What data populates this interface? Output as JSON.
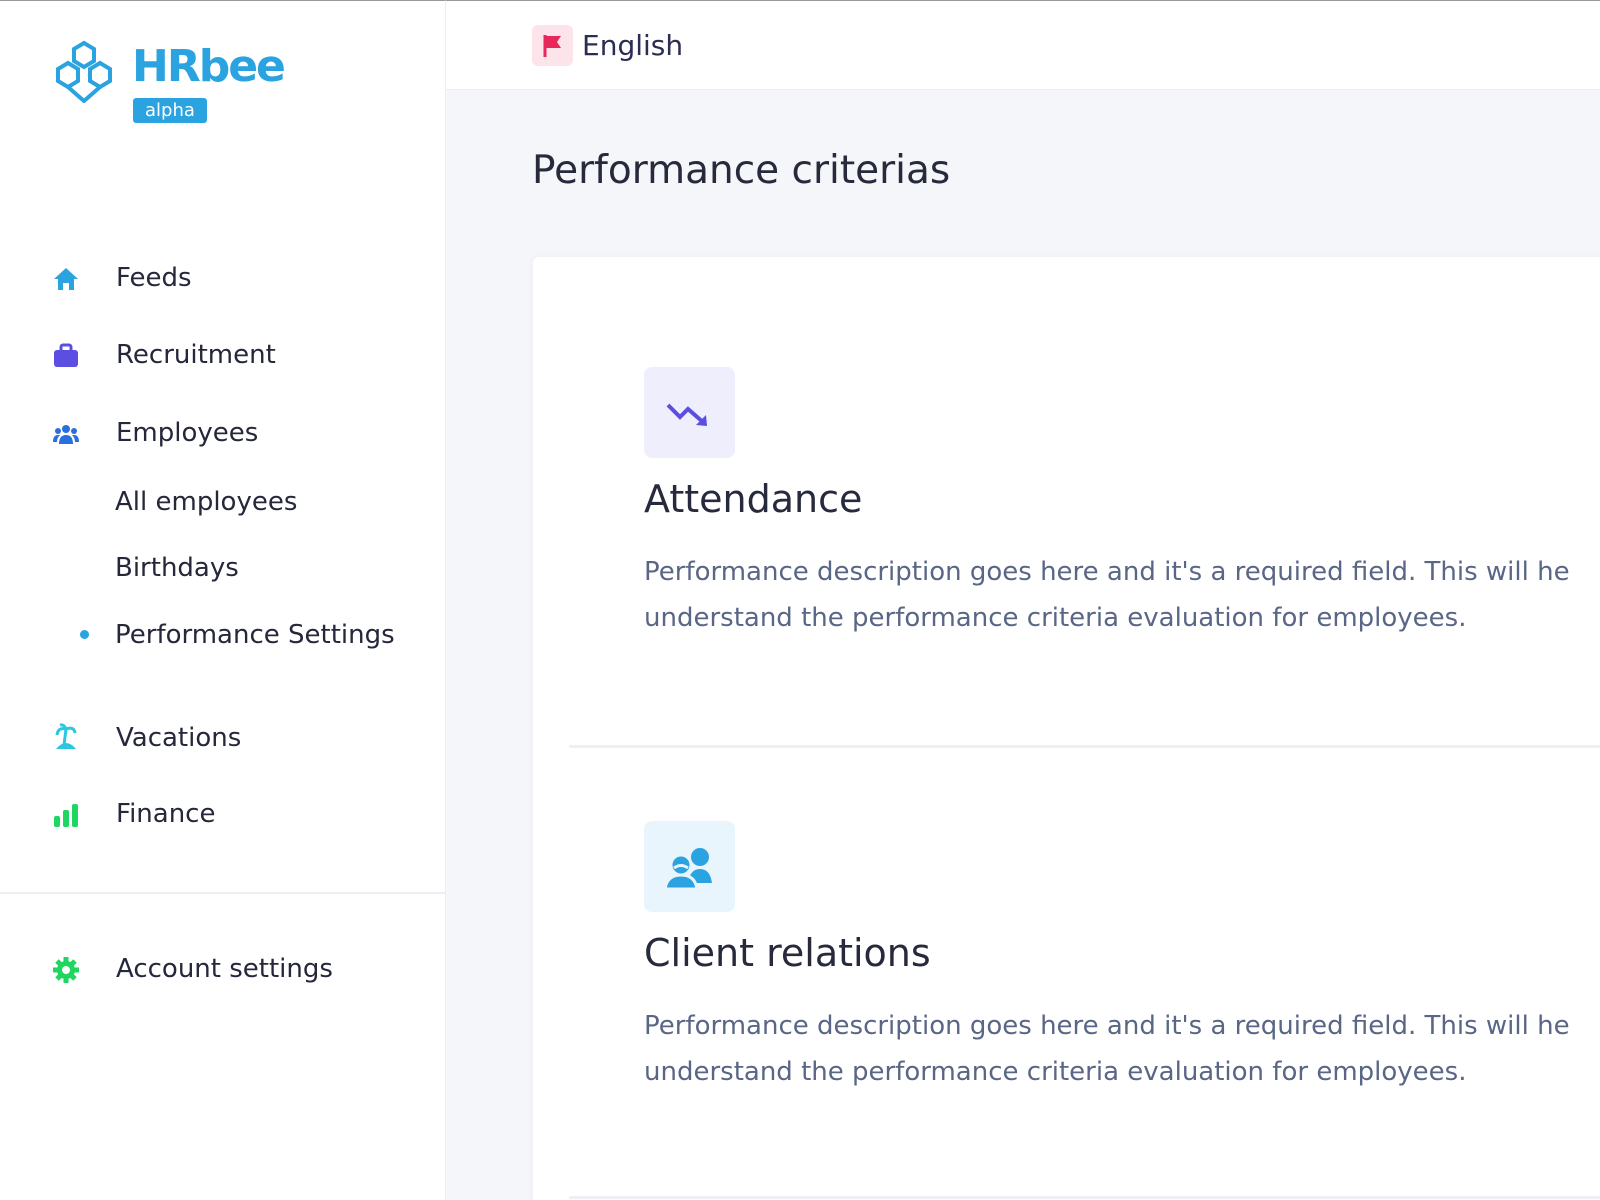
{
  "logo": {
    "name": "HRbee",
    "badge": "alpha"
  },
  "header": {
    "language": "English"
  },
  "sidebar": {
    "nav": [
      "Feeds",
      "Recruitment",
      "Employees"
    ],
    "subnav": [
      "All employees",
      "Birthdays",
      "Performance Settings"
    ],
    "nav2": [
      "Vacations",
      "Finance"
    ],
    "account": "Account settings"
  },
  "page": {
    "title": "Performance criterias",
    "criteria": [
      {
        "title": "Attendance",
        "description": [
          "Performance description goes here and it's a required field. This will he",
          "understand the performance criteria evaluation for employees."
        ]
      },
      {
        "title": "Client relations",
        "description": [
          "Performance description goes here and it's a required field. This will he",
          "understand the performance criteria evaluation for employees."
        ]
      }
    ]
  }
}
